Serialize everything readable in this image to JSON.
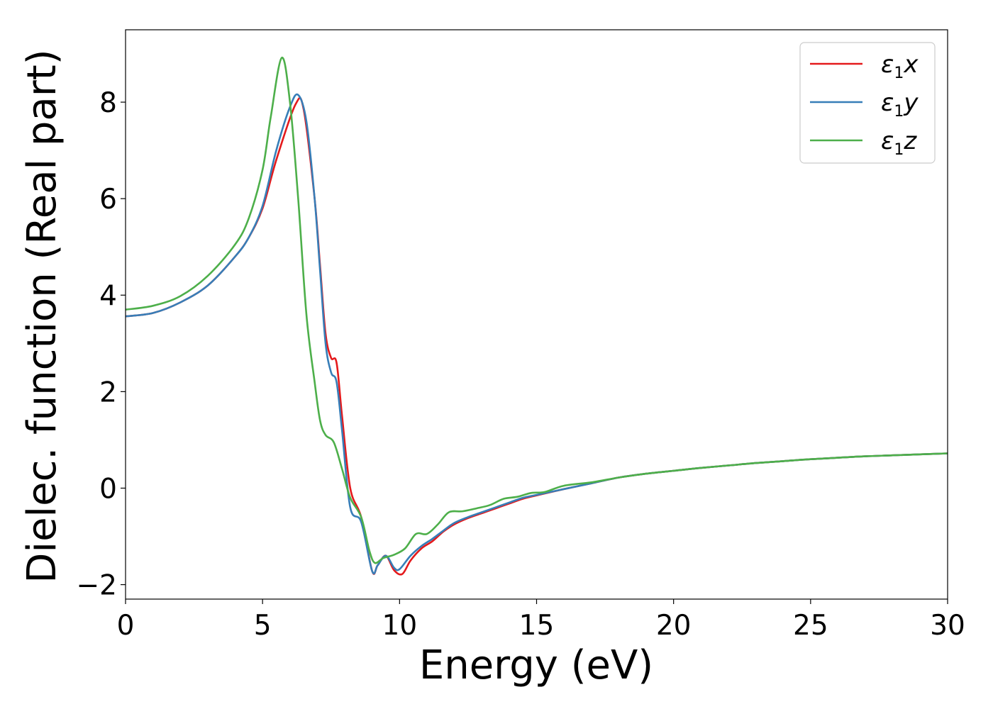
{
  "chart_data": {
    "type": "line",
    "title": "",
    "xlabel": "Energy (eV)",
    "ylabel": "Dielec. function (Real part)",
    "xlim": [
      0,
      30
    ],
    "ylim": [
      -2.3,
      9.5
    ],
    "grid": false,
    "legend_position": "top-right",
    "x_ticks": [
      0,
      5,
      10,
      15,
      20,
      25,
      30
    ],
    "x_tick_labels": [
      "0",
      "5",
      "10",
      "15",
      "20",
      "25",
      "30"
    ],
    "y_ticks": [
      -2,
      0,
      2,
      4,
      6,
      8
    ],
    "y_tick_labels": [
      "−2",
      "0",
      "2",
      "4",
      "6",
      "8"
    ],
    "series": [
      {
        "name": "ε₁x",
        "symbol": "ε",
        "subscript": "1",
        "suffix": "x",
        "color": "#e41a1c",
        "points": [
          [
            0,
            3.56
          ],
          [
            1,
            3.63
          ],
          [
            2,
            3.85
          ],
          [
            3,
            4.2
          ],
          [
            4,
            4.8
          ],
          [
            4.5,
            5.2
          ],
          [
            5,
            5.8
          ],
          [
            5.5,
            6.8
          ],
          [
            6.2,
            7.95
          ],
          [
            6.5,
            7.85
          ],
          [
            6.9,
            6.0
          ],
          [
            7.1,
            4.6
          ],
          [
            7.3,
            3.2
          ],
          [
            7.5,
            2.7
          ],
          [
            7.7,
            2.6
          ],
          [
            7.9,
            1.5
          ],
          [
            8.2,
            0.0
          ],
          [
            8.6,
            -0.6
          ],
          [
            9.0,
            -1.72
          ],
          [
            9.2,
            -1.6
          ],
          [
            9.5,
            -1.4
          ],
          [
            9.8,
            -1.7
          ],
          [
            10.1,
            -1.78
          ],
          [
            10.4,
            -1.5
          ],
          [
            10.8,
            -1.25
          ],
          [
            11.2,
            -1.1
          ],
          [
            11.6,
            -0.9
          ],
          [
            12.0,
            -0.75
          ],
          [
            12.5,
            -0.62
          ],
          [
            13.0,
            -0.52
          ],
          [
            13.5,
            -0.42
          ],
          [
            14.0,
            -0.32
          ],
          [
            14.5,
            -0.22
          ],
          [
            15.0,
            -0.15
          ],
          [
            16.0,
            -0.02
          ],
          [
            17.0,
            0.1
          ],
          [
            18.0,
            0.22
          ],
          [
            19.0,
            0.3
          ],
          [
            20.0,
            0.36
          ],
          [
            21.0,
            0.42
          ],
          [
            22.0,
            0.47
          ],
          [
            23.0,
            0.52
          ],
          [
            24.0,
            0.56
          ],
          [
            25.0,
            0.6
          ],
          [
            26.0,
            0.63
          ],
          [
            27.0,
            0.66
          ],
          [
            28.0,
            0.68
          ],
          [
            29.0,
            0.7
          ],
          [
            30.0,
            0.72
          ]
        ]
      },
      {
        "name": "ε₁y",
        "symbol": "ε",
        "subscript": "1",
        "suffix": "y",
        "color": "#377eb8",
        "points": [
          [
            0,
            3.56
          ],
          [
            1,
            3.63
          ],
          [
            2,
            3.85
          ],
          [
            3,
            4.2
          ],
          [
            4,
            4.8
          ],
          [
            4.5,
            5.2
          ],
          [
            5,
            5.85
          ],
          [
            5.5,
            7.0
          ],
          [
            6.0,
            7.9
          ],
          [
            6.3,
            8.15
          ],
          [
            6.6,
            7.6
          ],
          [
            6.9,
            6.0
          ],
          [
            7.1,
            4.5
          ],
          [
            7.3,
            3.0
          ],
          [
            7.5,
            2.4
          ],
          [
            7.7,
            2.2
          ],
          [
            7.9,
            1.2
          ],
          [
            8.2,
            -0.4
          ],
          [
            8.6,
            -0.7
          ],
          [
            9.0,
            -1.72
          ],
          [
            9.2,
            -1.6
          ],
          [
            9.5,
            -1.4
          ],
          [
            9.8,
            -1.65
          ],
          [
            10.0,
            -1.68
          ],
          [
            10.4,
            -1.4
          ],
          [
            10.8,
            -1.2
          ],
          [
            11.2,
            -1.05
          ],
          [
            11.6,
            -0.88
          ],
          [
            12.0,
            -0.72
          ],
          [
            12.5,
            -0.6
          ],
          [
            13.0,
            -0.5
          ],
          [
            13.5,
            -0.4
          ],
          [
            14.0,
            -0.3
          ],
          [
            14.5,
            -0.2
          ],
          [
            15.0,
            -0.14
          ],
          [
            16.0,
            -0.02
          ],
          [
            17.0,
            0.1
          ],
          [
            18.0,
            0.22
          ],
          [
            19.0,
            0.3
          ],
          [
            20.0,
            0.36
          ],
          [
            21.0,
            0.42
          ],
          [
            22.0,
            0.47
          ],
          [
            23.0,
            0.52
          ],
          [
            24.0,
            0.56
          ],
          [
            25.0,
            0.6
          ],
          [
            26.0,
            0.63
          ],
          [
            27.0,
            0.66
          ],
          [
            28.0,
            0.68
          ],
          [
            29.0,
            0.7
          ],
          [
            30.0,
            0.72
          ]
        ]
      },
      {
        "name": "ε₁z",
        "symbol": "ε",
        "subscript": "1",
        "suffix": "z",
        "color": "#4daf4a",
        "points": [
          [
            0,
            3.7
          ],
          [
            1,
            3.78
          ],
          [
            2,
            3.98
          ],
          [
            3,
            4.4
          ],
          [
            4,
            5.05
          ],
          [
            4.5,
            5.6
          ],
          [
            5.0,
            6.6
          ],
          [
            5.3,
            7.7
          ],
          [
            5.7,
            8.92
          ],
          [
            6.0,
            8.0
          ],
          [
            6.3,
            6.0
          ],
          [
            6.6,
            3.6
          ],
          [
            6.9,
            2.2
          ],
          [
            7.1,
            1.4
          ],
          [
            7.3,
            1.1
          ],
          [
            7.6,
            0.95
          ],
          [
            7.9,
            0.4
          ],
          [
            8.2,
            -0.2
          ],
          [
            8.6,
            -0.6
          ],
          [
            8.9,
            -1.3
          ],
          [
            9.1,
            -1.55
          ],
          [
            9.4,
            -1.45
          ],
          [
            9.8,
            -1.38
          ],
          [
            10.2,
            -1.25
          ],
          [
            10.6,
            -0.95
          ],
          [
            11.0,
            -0.95
          ],
          [
            11.4,
            -0.75
          ],
          [
            11.8,
            -0.5
          ],
          [
            12.3,
            -0.48
          ],
          [
            12.8,
            -0.42
          ],
          [
            13.3,
            -0.35
          ],
          [
            13.8,
            -0.22
          ],
          [
            14.3,
            -0.18
          ],
          [
            14.8,
            -0.1
          ],
          [
            15.3,
            -0.08
          ],
          [
            16.0,
            0.05
          ],
          [
            17.0,
            0.12
          ],
          [
            18.0,
            0.22
          ],
          [
            19.0,
            0.3
          ],
          [
            20.0,
            0.36
          ],
          [
            21.0,
            0.42
          ],
          [
            22.0,
            0.47
          ],
          [
            23.0,
            0.52
          ],
          [
            24.0,
            0.56
          ],
          [
            25.0,
            0.6
          ],
          [
            26.0,
            0.63
          ],
          [
            27.0,
            0.66
          ],
          [
            28.0,
            0.68
          ],
          [
            29.0,
            0.7
          ],
          [
            30.0,
            0.72
          ]
        ]
      }
    ]
  }
}
